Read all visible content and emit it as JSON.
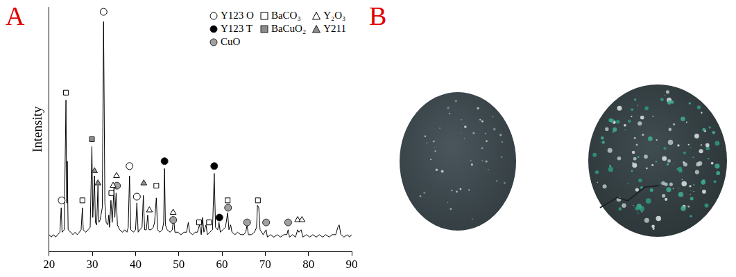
{
  "chart_data": {
    "panel": "A",
    "type": "line",
    "y_label": "Intensity",
    "color": "#000000",
    "xlim": [
      20,
      90
    ],
    "xticks": [
      20,
      30,
      40,
      50,
      60,
      70,
      80,
      90
    ],
    "ylim": [
      0,
      100
    ],
    "grid": false,
    "tick_labels": "x",
    "legend": "upper right",
    "x": [
      20.0,
      20.5,
      21.0,
      21.5,
      22.0,
      22.5,
      22.8,
      23.0,
      23.5,
      23.9,
      24.05,
      24.2,
      24.4,
      25.0,
      25.5,
      26.0,
      26.5,
      27.0,
      27.4,
      27.7,
      27.9,
      28.5,
      29.0,
      29.5,
      29.9,
      30.1,
      30.5,
      30.7,
      31.0,
      31.3,
      31.5,
      31.8,
      32.3,
      32.6,
      32.9,
      33.2,
      33.6,
      33.8,
      34.0,
      34.3,
      34.6,
      35.0,
      35.2,
      35.5,
      35.8,
      36.3,
      37.0,
      37.5,
      38.0,
      38.3,
      38.6,
      38.9,
      39.5,
      40.0,
      40.3,
      40.6,
      41.0,
      41.5,
      41.8,
      42.1,
      42.5,
      42.8,
      43.1,
      43.6,
      44.1,
      44.4,
      44.8,
      45.1,
      45.6,
      46.2,
      46.5,
      46.7,
      46.9,
      47.3,
      48.0,
      48.5,
      48.8,
      49.1,
      49.8,
      50.5,
      51.2,
      51.8,
      52.2,
      52.5,
      53.2,
      53.8,
      54.3,
      54.8,
      55.2,
      55.5,
      55.8,
      56.3,
      56.6,
      57.2,
      57.8,
      58.2,
      58.5,
      59.0,
      59.3,
      59.6,
      60.2,
      60.8,
      61.3,
      61.6,
      62.0,
      62.3,
      63.0,
      63.6,
      64.3,
      65.0,
      65.5,
      65.8,
      66.1,
      66.8,
      67.5,
      68.0,
      68.2,
      68.5,
      68.8,
      69.5,
      70.2,
      70.5,
      71.2,
      72.0,
      72.8,
      73.5,
      74.3,
      75.0,
      75.3,
      75.6,
      76.3,
      77.0,
      77.5,
      77.8,
      78.3,
      78.7,
      79.5,
      80.3,
      81.0,
      81.8,
      82.5,
      83.3,
      84.0,
      84.8,
      85.5,
      86.3,
      86.8,
      87.1,
      87.5,
      88.2,
      89.0,
      89.5,
      90.0
    ],
    "values": [
      7,
      6,
      7,
      6,
      7,
      8,
      18,
      8,
      9,
      62,
      20,
      37,
      9,
      8,
      7,
      8,
      7,
      8,
      9,
      18,
      9,
      8,
      9,
      10,
      43,
      14,
      31,
      12,
      11,
      27,
      12,
      13,
      18,
      94,
      20,
      12,
      11,
      15,
      10,
      21,
      12,
      26,
      14,
      24,
      11,
      9,
      8,
      9,
      8,
      10,
      31,
      9,
      8,
      9,
      20,
      8,
      9,
      10,
      23,
      9,
      9,
      15,
      9,
      9,
      10,
      12,
      22,
      9,
      8,
      9,
      12,
      34,
      11,
      9,
      8,
      9,
      14,
      8,
      8,
      7,
      8,
      8,
      12,
      8,
      7,
      8,
      8,
      11,
      7,
      14,
      8,
      11,
      7,
      8,
      9,
      32,
      10,
      9,
      12,
      8,
      9,
      10,
      16,
      9,
      11,
      8,
      7,
      8,
      7,
      7,
      8,
      11,
      7,
      7,
      8,
      10,
      19,
      18,
      9,
      7,
      9,
      6,
      7,
      6,
      7,
      6,
      7,
      7,
      9,
      6,
      7,
      6,
      9,
      8,
      9,
      6,
      7,
      6,
      7,
      6,
      7,
      6,
      7,
      6,
      7,
      7,
      10,
      11,
      7,
      6,
      7,
      6,
      7
    ],
    "series": [
      {
        "name": "Y123 O",
        "type": "scatter",
        "marker": "circle-open",
        "color": "#000000",
        "x": [
          22.9,
          32.6,
          38.6,
          40.3
        ],
        "values": [
          21,
          98,
          35,
          22.5
        ]
      },
      {
        "name": "BaCO₃",
        "type": "scatter",
        "marker": "square-open",
        "color": "#000000",
        "x": [
          23.9,
          27.7,
          34.4,
          44.8,
          54.7,
          57.0,
          61.3,
          68.3
        ],
        "values": [
          65,
          21,
          24,
          27,
          12,
          12,
          21,
          21
        ]
      },
      {
        "name": "Y₂O₃",
        "type": "scatter",
        "marker": "triangle-open",
        "color": "#000000",
        "x": [
          34.8,
          35.6,
          43.2,
          48.7,
          77.5,
          78.5
        ],
        "values": [
          27,
          31,
          17,
          16,
          13,
          13
        ]
      },
      {
        "name": "Y123 T",
        "type": "scatter",
        "marker": "circle",
        "color": "#000000",
        "x": [
          46.7,
          58.2,
          59.4
        ],
        "values": [
          37,
          35,
          14
        ]
      },
      {
        "name": "BaCuO₂",
        "type": "scatter",
        "marker": "square",
        "color": "#8c8c8c",
        "x": [
          29.9
        ],
        "values": [
          46
        ]
      },
      {
        "name": "Y211",
        "type": "scatter",
        "marker": "triangle",
        "color": "#8c8c8c",
        "x": [
          30.5,
          31.3,
          41.9
        ],
        "values": [
          33,
          28,
          28
        ]
      },
      {
        "name": "CuO",
        "type": "scatter",
        "marker": "circle",
        "color": "#a0a0a0",
        "x": [
          35.7,
          48.7,
          61.4,
          65.8,
          70.2,
          75.3
        ],
        "values": [
          27,
          13,
          18,
          12,
          12,
          12
        ]
      }
    ]
  },
  "photo": {
    "panel": "B"
  }
}
